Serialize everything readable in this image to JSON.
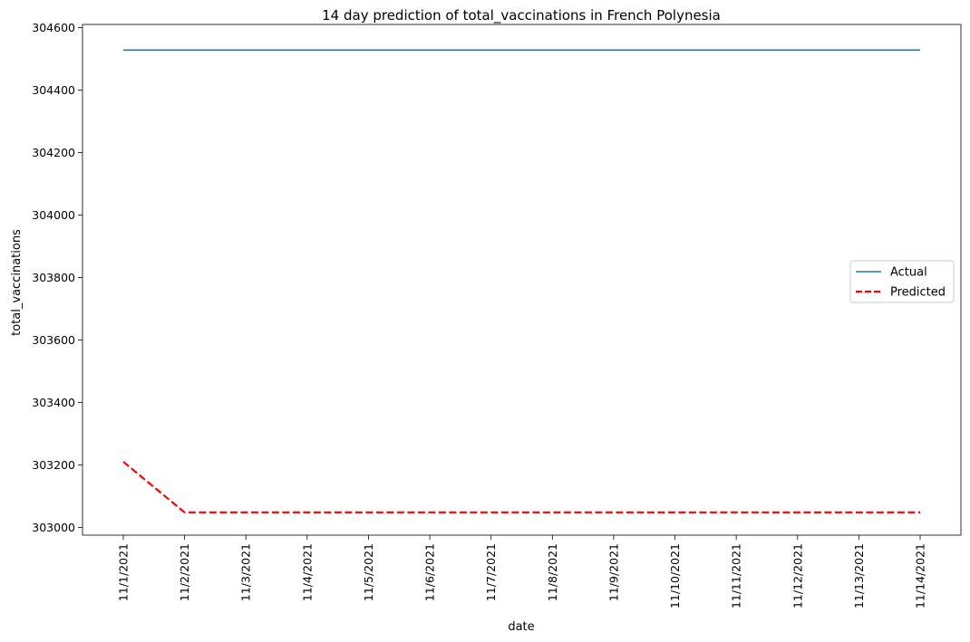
{
  "chart_data": {
    "type": "line",
    "title": "14 day prediction of total_vaccinations in French Polynesia",
    "xlabel": "date",
    "ylabel": "total_vaccinations",
    "x": [
      "11/1/2021",
      "11/2/2021",
      "11/3/2021",
      "11/4/2021",
      "11/5/2021",
      "11/6/2021",
      "11/7/2021",
      "11/8/2021",
      "11/9/2021",
      "11/10/2021",
      "11/11/2021",
      "11/12/2021",
      "11/13/2021",
      "11/14/2021"
    ],
    "yticks": [
      303000,
      303200,
      303400,
      303600,
      303800,
      304000,
      304200,
      304400,
      304600
    ],
    "ylim": [
      302975,
      304610
    ],
    "grid": false,
    "legend_position": "center-right",
    "series": [
      {
        "name": "Actual",
        "color": "#1f77b4",
        "style": "solid",
        "values": [
          304528,
          304528,
          304528,
          304528,
          304528,
          304528,
          304528,
          304528,
          304528,
          304528,
          304528,
          304528,
          304528,
          304528
        ]
      },
      {
        "name": "Predicted",
        "color": "#ff0000",
        "style": "dashed",
        "values": [
          303210,
          303048,
          303048,
          303048,
          303048,
          303048,
          303048,
          303048,
          303048,
          303048,
          303048,
          303048,
          303048,
          303048
        ]
      }
    ]
  }
}
